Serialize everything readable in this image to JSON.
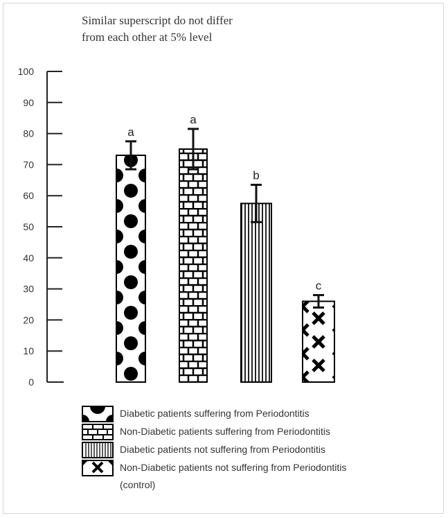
{
  "note": {
    "line1": "Similar superscript do not differ",
    "line2": "from each other at 5% level"
  },
  "chart_data": {
    "type": "bar",
    "title": "",
    "xlabel": "",
    "ylabel": "",
    "ylim": [
      0,
      100
    ],
    "yticks": [
      "0",
      "10",
      "20",
      "30",
      "40",
      "50",
      "60",
      "70",
      "80",
      "90",
      "100"
    ],
    "grid": false,
    "legend_position": "bottom",
    "series": [
      {
        "name": "Diabetic patients suffering from Periodontitis",
        "value": 73,
        "error": 4.5,
        "superscript": "a",
        "pattern": "dots"
      },
      {
        "name": "Non-Diabetic patients suffering from Periodontitis",
        "value": 75,
        "error": 6.5,
        "superscript": "a",
        "pattern": "bricks"
      },
      {
        "name": "Diabetic patients not suffering from Periodontitis",
        "value": 57.5,
        "error": 6,
        "superscript": "b",
        "pattern": "vlines"
      },
      {
        "name": "Non-Diabetic patients not suffering from Periodontitis",
        "name_continued": "(control)",
        "value": 26,
        "error": 2,
        "superscript": "c",
        "pattern": "crosses"
      }
    ]
  }
}
